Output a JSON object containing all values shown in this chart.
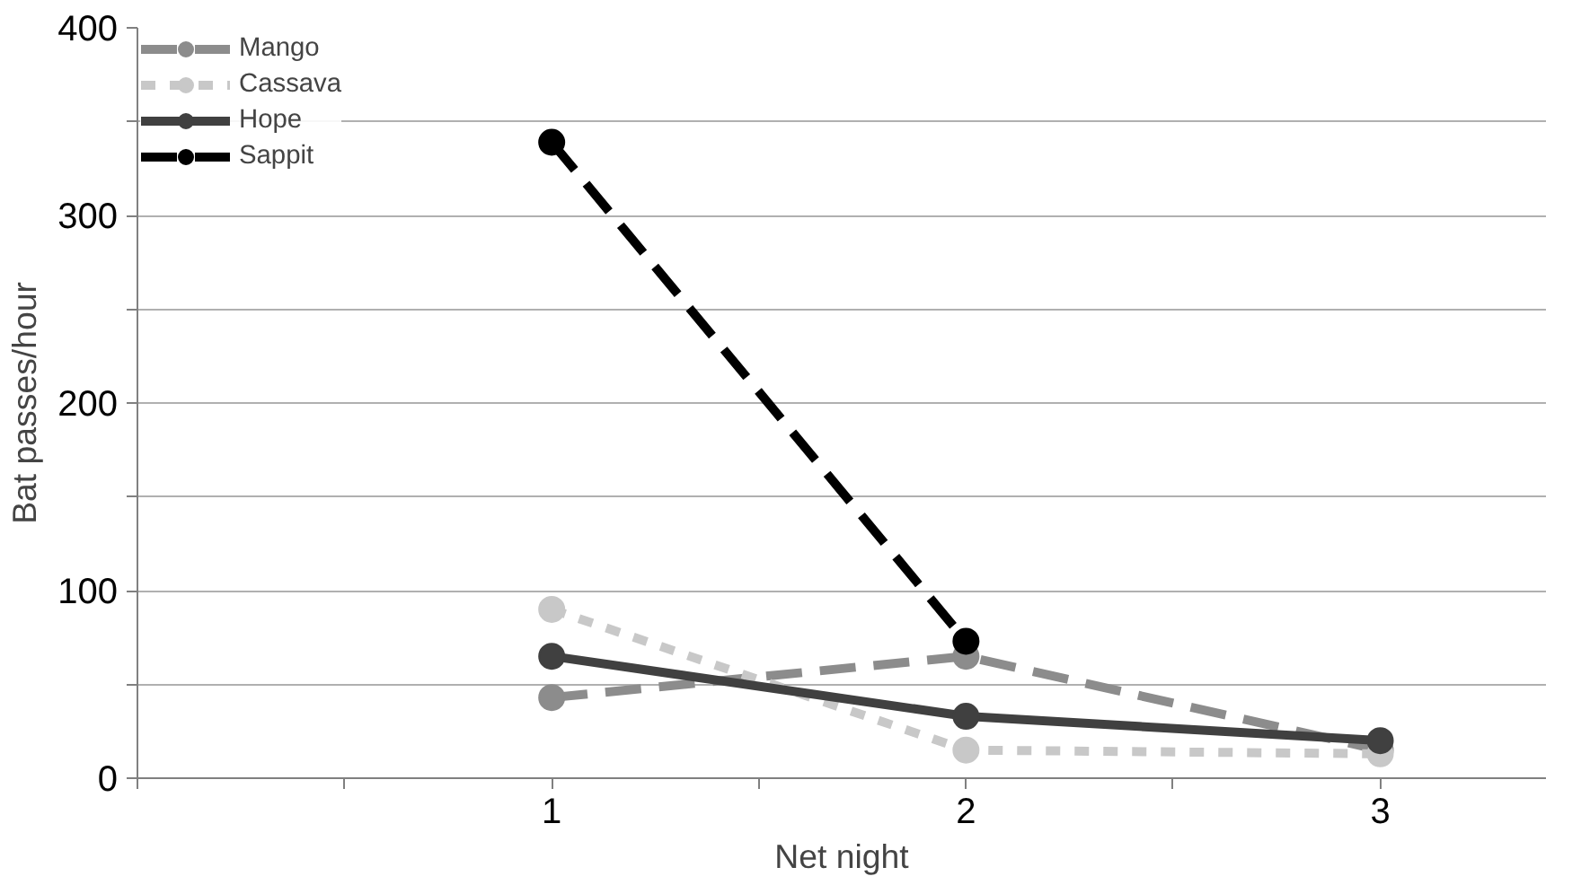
{
  "chart_data": {
    "type": "line",
    "xlabel": "Net night",
    "ylabel": "Bat passes/hour",
    "x": [
      1,
      2,
      3
    ],
    "xlim": [
      0,
      3.4
    ],
    "xticks": [
      {
        "value": 0,
        "label": null
      },
      {
        "value": 0.5,
        "label": null
      },
      1,
      {
        "value": 1.5,
        "label": null
      },
      2,
      {
        "value": 2.5,
        "label": null
      },
      3
    ],
    "ylim": [
      0,
      400
    ],
    "yticks": [
      0,
      {
        "value": 50,
        "label": null
      },
      100,
      {
        "value": 150,
        "label": null
      },
      200,
      {
        "value": 250,
        "label": null
      },
      300,
      {
        "value": 350,
        "label": null
      },
      400
    ],
    "grid": "y",
    "legend": "top left",
    "marker": "circle",
    "series": [
      {
        "name": "Mango",
        "color": "#8c8c8c",
        "line_style": "dashed",
        "values": [
          43,
          65,
          15
        ]
      },
      {
        "name": "Cassava",
        "color": "#c8c8c8",
        "line_style": "dotted",
        "values": [
          90,
          15,
          13
        ]
      },
      {
        "name": "Hope",
        "color": "#404040",
        "line_style": "solid",
        "values": [
          65,
          33,
          20
        ]
      },
      {
        "name": "Sappit",
        "color": "#000000",
        "line_style": "dashed",
        "values": [
          339,
          73,
          null
        ]
      }
    ]
  }
}
